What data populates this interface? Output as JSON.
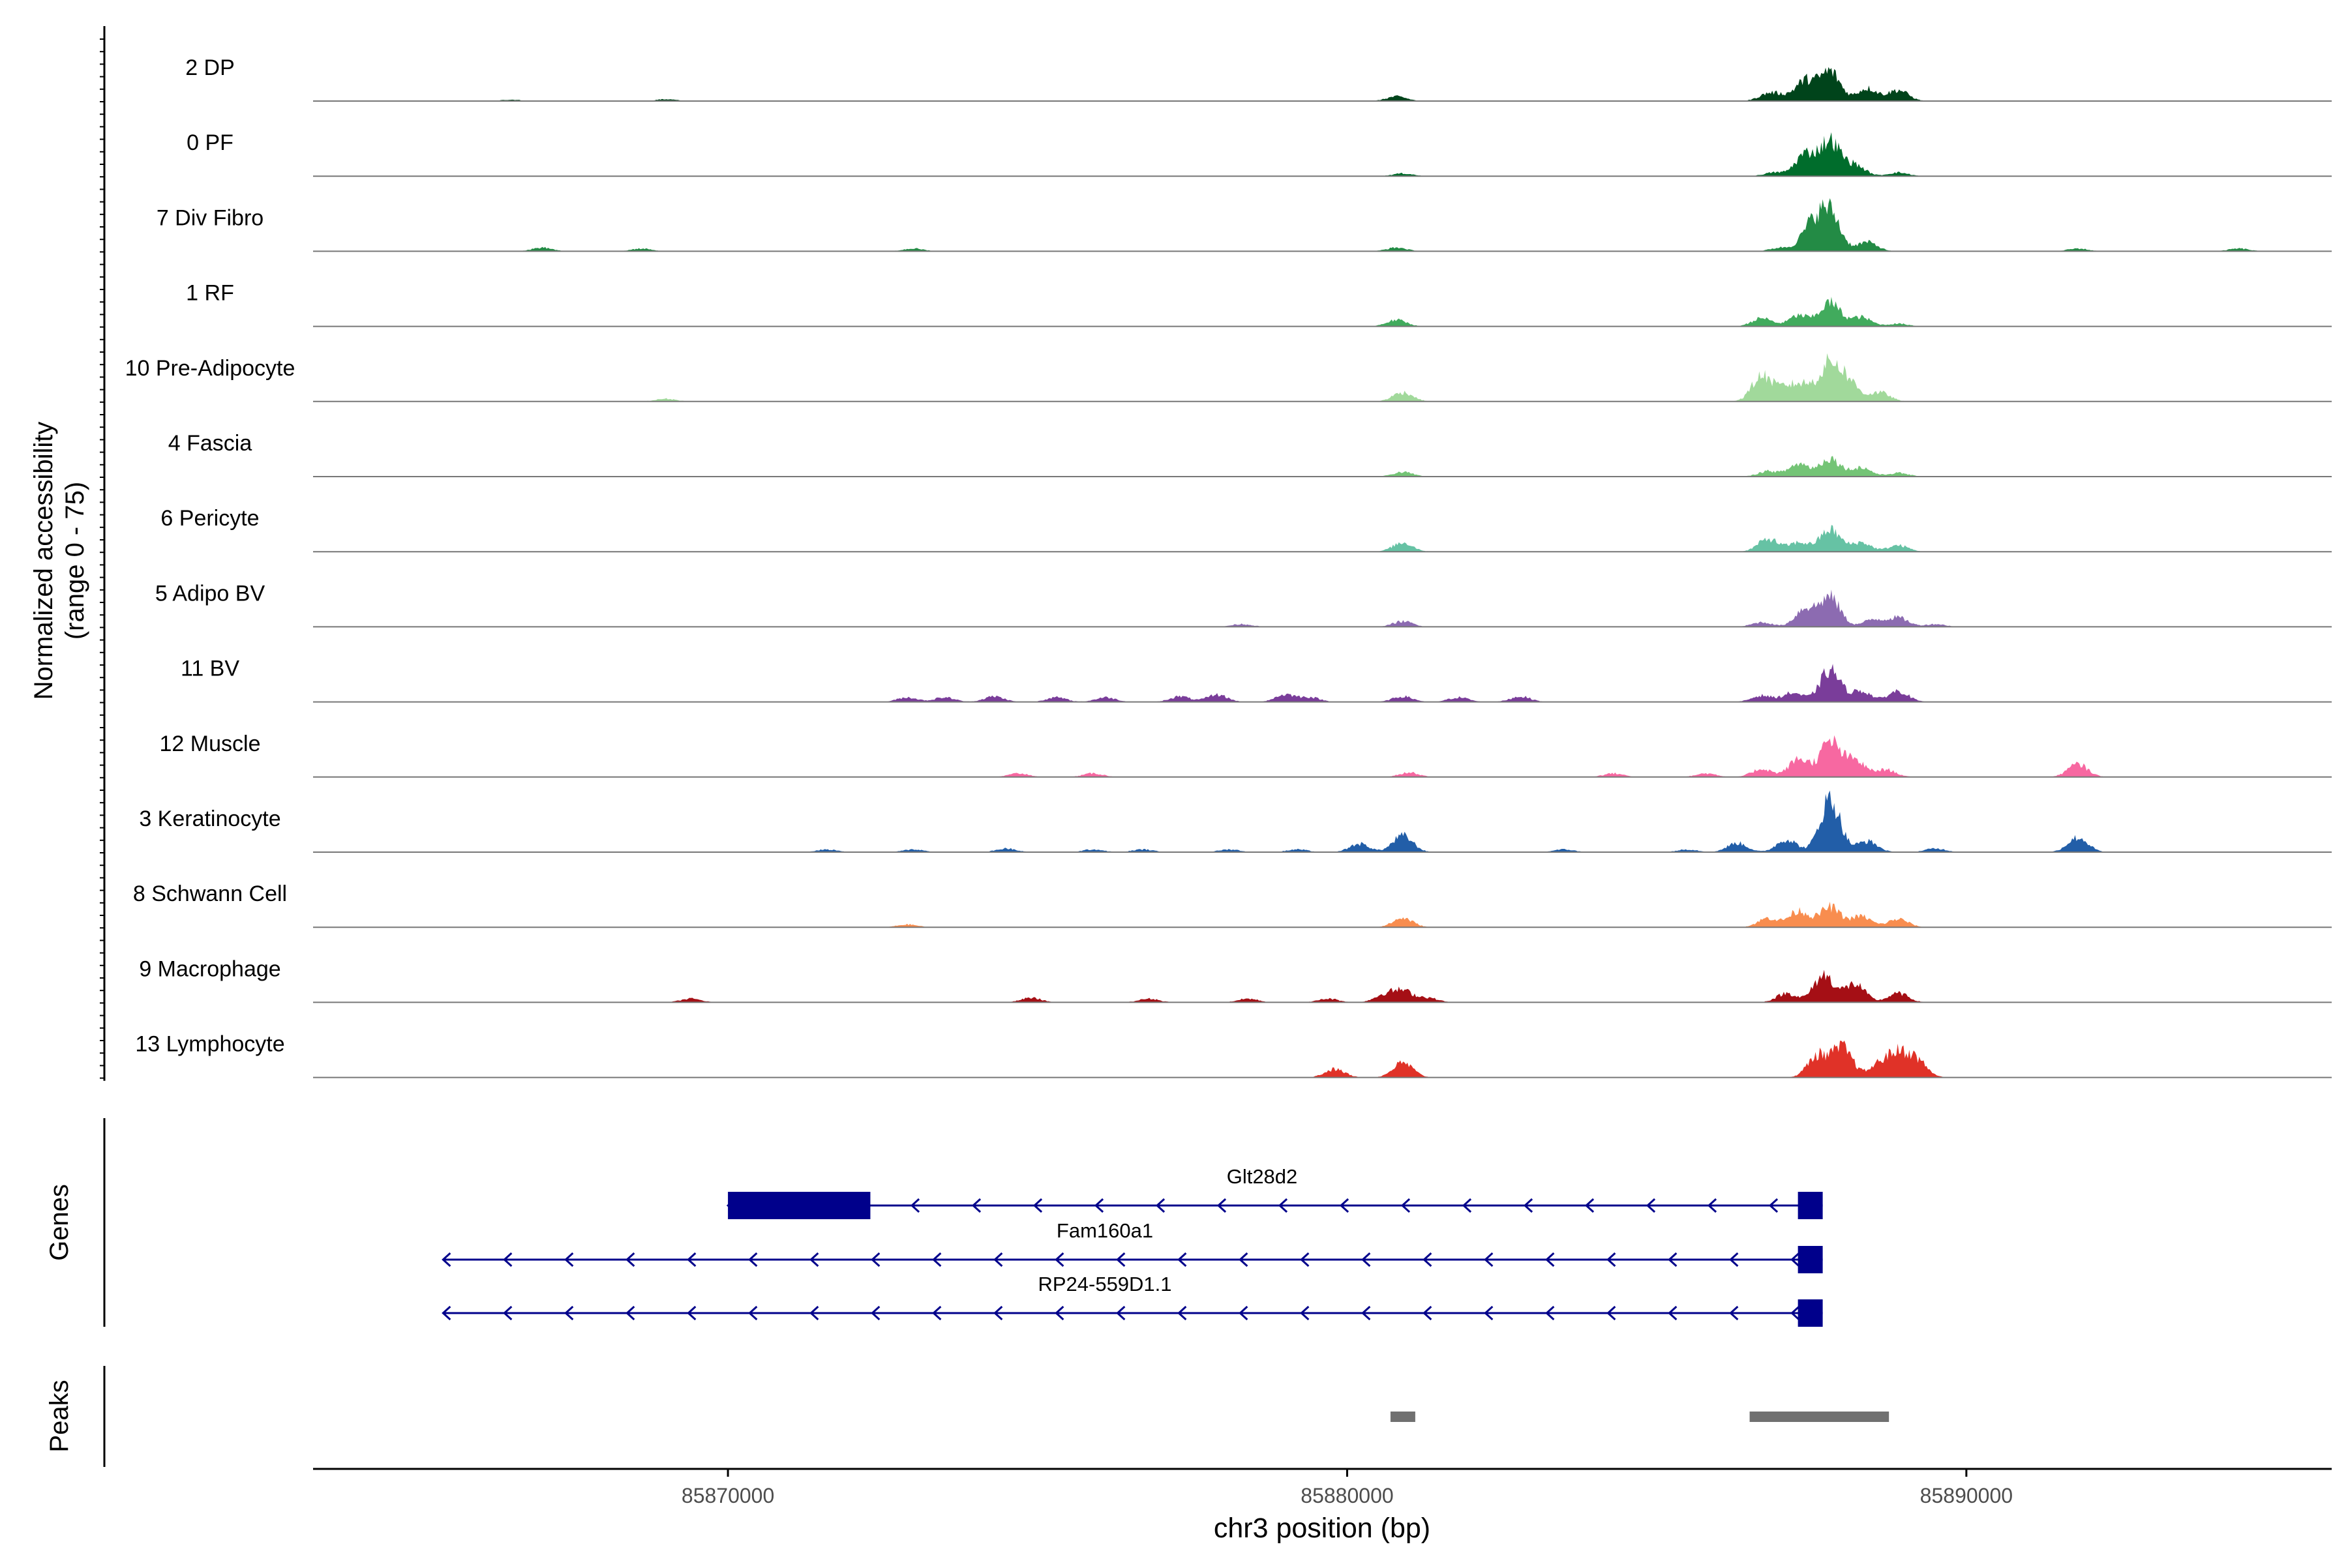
{
  "chart_data": {
    "type": "coverage_track",
    "ylabel_line1": "Normalized accessibility",
    "ylabel_line2": "(range 0 - 75)",
    "xlabel": "chr3 position (bp)",
    "xlim": [
      85863300,
      85895900
    ],
    "ylim": [
      0,
      75
    ],
    "x_ticks": [
      85870000,
      85880000,
      85890000
    ],
    "x_tick_labels": [
      "85870000",
      "85880000",
      "85890000"
    ],
    "genes_label": "Genes",
    "peaks_label": "Peaks",
    "tracks": [
      {
        "name": "2 DP",
        "color": "#00441b",
        "peaks": [
          [
            85869000,
            2
          ],
          [
            85866500,
            1.5
          ],
          [
            85878000,
            0
          ],
          [
            85880800,
            5
          ],
          [
            85886800,
            7
          ],
          [
            85887000,
            4
          ],
          [
            85887400,
            22
          ],
          [
            85887800,
            32
          ],
          [
            85888400,
            14
          ],
          [
            85888900,
            12
          ]
        ]
      },
      {
        "name": "0 PF",
        "color": "#006d2c",
        "peaks": [
          [
            85880900,
            3
          ],
          [
            85886900,
            4
          ],
          [
            85887400,
            24
          ],
          [
            85887800,
            38
          ],
          [
            85888200,
            12
          ],
          [
            85888900,
            4
          ]
        ]
      },
      {
        "name": "7 Div Fibro",
        "color": "#238b45",
        "peaks": [
          [
            85867000,
            4
          ],
          [
            85868600,
            3
          ],
          [
            85873000,
            3
          ],
          [
            85880800,
            4
          ],
          [
            85887000,
            4
          ],
          [
            85887500,
            28
          ],
          [
            85887800,
            42
          ],
          [
            85888400,
            10
          ],
          [
            85891800,
            3
          ],
          [
            85894400,
            3
          ]
        ]
      },
      {
        "name": "1 RF",
        "color": "#41ab5d",
        "peaks": [
          [
            85880800,
            7
          ],
          [
            85886700,
            9
          ],
          [
            85887300,
            12
          ],
          [
            85887800,
            26
          ],
          [
            85888300,
            10
          ],
          [
            85888900,
            3
          ]
        ]
      },
      {
        "name": "10 Pre-Adipocyte",
        "color": "#a1d99b",
        "peaks": [
          [
            85869000,
            3
          ],
          [
            85880900,
            10
          ],
          [
            85886700,
            28
          ],
          [
            85887100,
            14
          ],
          [
            85887400,
            16
          ],
          [
            85887800,
            40
          ],
          [
            85888100,
            20
          ],
          [
            85888600,
            10
          ]
        ]
      },
      {
        "name": "4 Fascia",
        "color": "#74c476",
        "peaks": [
          [
            85880900,
            5
          ],
          [
            85886800,
            6
          ],
          [
            85887300,
            14
          ],
          [
            85887800,
            20
          ],
          [
            85888300,
            10
          ],
          [
            85888900,
            4
          ]
        ]
      },
      {
        "name": "6 Pericyte",
        "color": "#66c2a4",
        "peaks": [
          [
            85880900,
            10
          ],
          [
            85886800,
            14
          ],
          [
            85887300,
            10
          ],
          [
            85887800,
            24
          ],
          [
            85888300,
            10
          ],
          [
            85888900,
            7
          ]
        ]
      },
      {
        "name": "5 Adipo BV",
        "color": "#8c6bb1",
        "peaks": [
          [
            85878300,
            3
          ],
          [
            85880900,
            6
          ],
          [
            85886700,
            5
          ],
          [
            85887400,
            20
          ],
          [
            85887800,
            32
          ],
          [
            85888500,
            8
          ],
          [
            85888900,
            10
          ],
          [
            85889500,
            3
          ]
        ]
      },
      {
        "name": "11 BV",
        "color": "#7a3d9a",
        "peaks": [
          [
            85872900,
            5
          ],
          [
            85873500,
            5
          ],
          [
            85874300,
            6
          ],
          [
            85875300,
            5
          ],
          [
            85876100,
            5
          ],
          [
            85877300,
            6
          ],
          [
            85877900,
            8
          ],
          [
            85879000,
            8
          ],
          [
            85879400,
            5
          ],
          [
            85880900,
            6
          ],
          [
            85881800,
            5
          ],
          [
            85882800,
            6
          ],
          [
            85886700,
            7
          ],
          [
            85887200,
            10
          ],
          [
            85887800,
            35
          ],
          [
            85888300,
            12
          ],
          [
            85888900,
            12
          ]
        ]
      },
      {
        "name": "12 Muscle",
        "color": "#f768a1",
        "peaks": [
          [
            85874700,
            4
          ],
          [
            85875900,
            4
          ],
          [
            85881000,
            5
          ],
          [
            85884300,
            4
          ],
          [
            85885800,
            4
          ],
          [
            85886700,
            9
          ],
          [
            85887300,
            20
          ],
          [
            85887800,
            38
          ],
          [
            85888200,
            18
          ],
          [
            85888700,
            8
          ],
          [
            85891800,
            14
          ]
        ]
      },
      {
        "name": "3 Keratinocyte",
        "color": "#225ea8",
        "peaks": [
          [
            85871600,
            3
          ],
          [
            85873000,
            3
          ],
          [
            85874500,
            4
          ],
          [
            85875900,
            3
          ],
          [
            85876700,
            3
          ],
          [
            85878100,
            3
          ],
          [
            85879200,
            3
          ],
          [
            85880200,
            9
          ],
          [
            85880900,
            18
          ],
          [
            85883500,
            3
          ],
          [
            85885500,
            3
          ],
          [
            85886300,
            10
          ],
          [
            85887100,
            14
          ],
          [
            85887800,
            58
          ],
          [
            85888400,
            12
          ],
          [
            85889500,
            4
          ],
          [
            85891800,
            16
          ]
        ]
      },
      {
        "name": "8 Schwann Cell",
        "color": "#f88d4f",
        "peaks": [
          [
            85872900,
            3
          ],
          [
            85880900,
            10
          ],
          [
            85886800,
            10
          ],
          [
            85887300,
            18
          ],
          [
            85887800,
            22
          ],
          [
            85888300,
            12
          ],
          [
            85888900,
            9
          ]
        ]
      },
      {
        "name": "9 Macrophage",
        "color": "#a50f15",
        "peaks": [
          [
            85869400,
            4
          ],
          [
            85874900,
            5
          ],
          [
            85876800,
            4
          ],
          [
            85878400,
            4
          ],
          [
            85879700,
            4
          ],
          [
            85880600,
            8
          ],
          [
            85880900,
            12
          ],
          [
            85881300,
            5
          ],
          [
            85887100,
            10
          ],
          [
            85887700,
            30
          ],
          [
            85888200,
            20
          ],
          [
            85888900,
            10
          ]
        ]
      },
      {
        "name": "13 Lymphocyte",
        "color": "#e03228",
        "peaks": [
          [
            85879800,
            9
          ],
          [
            85880900,
            16
          ],
          [
            85887600,
            24
          ],
          [
            85888000,
            32
          ],
          [
            85888600,
            14
          ],
          [
            85888900,
            24
          ],
          [
            85889200,
            18
          ]
        ]
      }
    ],
    "genes": [
      {
        "name": "Glt28d2",
        "start": 85870000,
        "end": 85887680,
        "strand": "-",
        "cds_start": 85870000,
        "cds_end": 85872300,
        "exons": [
          [
            85870000,
            85872300
          ],
          [
            85887280,
            85887680
          ]
        ]
      },
      {
        "name": "Fam160a1",
        "start": 85865400,
        "end": 85887680,
        "strand": "-",
        "exons": [
          [
            85887280,
            85887680
          ]
        ]
      },
      {
        "name": "RP24-559D1.1",
        "start": 85865400,
        "end": 85887680,
        "strand": "-",
        "exons": [
          [
            85887280,
            85887680
          ]
        ]
      }
    ],
    "peak_regions": [
      [
        85880700,
        85881100
      ],
      [
        85886500,
        85888750
      ]
    ]
  }
}
